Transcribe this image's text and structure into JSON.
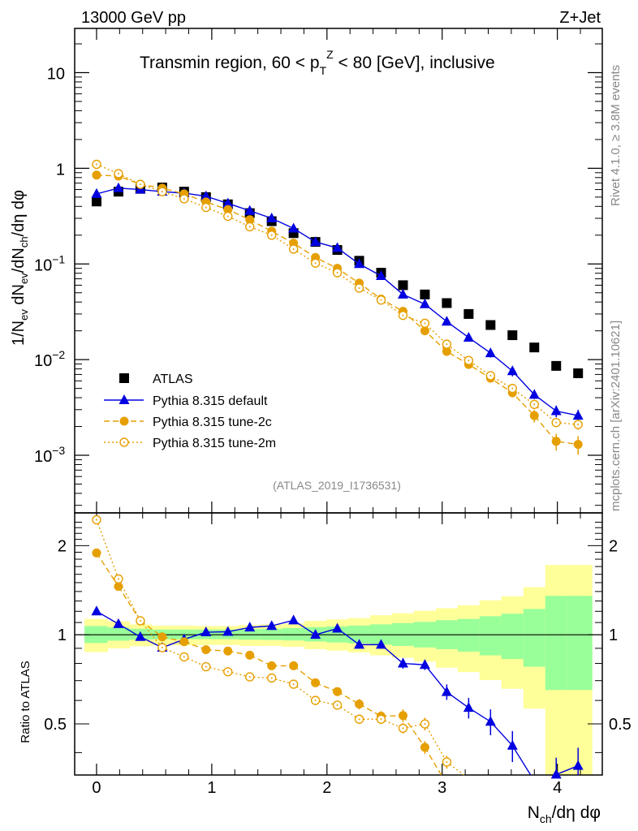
{
  "header": {
    "left": "13000 GeV pp",
    "right": "Z+Jet"
  },
  "side_labels": {
    "top": "Rivet 4.1.0, ≥ 3.8M events",
    "bottom": "mcplots.cern.ch [arXiv:2401.10621]"
  },
  "analysis_id": "(ATLAS_2019_I1736531)",
  "chart_data": {
    "type": "line",
    "title": "Transmin region, 60 < p_T^Z < 80 [GeV], inclusive",
    "title_parts": {
      "pre": "Transmin region, 60 < p",
      "sup": "Z",
      "sub": "T",
      "post": " < 80 [GeV], inclusive"
    },
    "xlabel": "N_ch/dη dφ",
    "xlabel_parts": {
      "main": "N",
      "sub": "ch",
      "post": "/dη dφ"
    },
    "ylabel": "1/N_ev dN_ev/dN_ch/dη dφ",
    "ylabel_parts": {
      "a": "1/N",
      "a_sub": "ev",
      "b": " dN",
      "b_sub": "ev",
      "c": "/dN",
      "c_sub": "ch",
      "d": "/dη dφ"
    },
    "ratio_ylabel": "Ratio to ATLAS",
    "xlim": [
      -0.19,
      4.39
    ],
    "ylim": [
      0.00025,
      29
    ],
    "yscale": "log",
    "ratio_ylim": [
      0.336,
      2.58
    ],
    "x_ticks": [
      "0",
      "1",
      "2",
      "3",
      "4"
    ],
    "y_ticks": [
      {
        "v": 0.001,
        "base": "10",
        "exp": "−3"
      },
      {
        "v": 0.01,
        "base": "10",
        "exp": "−2"
      },
      {
        "v": 0.1,
        "base": "10",
        "exp": "−1"
      },
      {
        "v": 1,
        "base": "1",
        "exp": ""
      },
      {
        "v": 10,
        "base": "10",
        "exp": ""
      }
    ],
    "ratio_ticks": [
      "0.5",
      "1",
      "2"
    ],
    "legend_position": "lower-left",
    "x": [
      0,
      0.19,
      0.38,
      0.57,
      0.76,
      0.95,
      1.14,
      1.33,
      1.52,
      1.71,
      1.9,
      2.09,
      2.28,
      2.47,
      2.66,
      2.85,
      3.04,
      3.23,
      3.42,
      3.61,
      3.8,
      3.99,
      4.18
    ],
    "series": [
      {
        "name": "ATLAS",
        "color": "#000000",
        "marker": "square",
        "values": [
          0.45,
          0.57,
          0.61,
          0.63,
          0.57,
          0.5,
          0.42,
          0.34,
          0.28,
          0.21,
          0.17,
          0.14,
          0.108,
          0.081,
          0.06,
          0.048,
          0.039,
          0.03,
          0.023,
          0.018,
          0.0134,
          0.0086,
          0.0072
        ]
      },
      {
        "name": "Pythia 8.315 default",
        "color": "#0000e0",
        "marker": "triangle",
        "line": "solid",
        "values": [
          0.54,
          0.62,
          0.6,
          0.57,
          0.55,
          0.51,
          0.43,
          0.36,
          0.3,
          0.235,
          0.17,
          0.147,
          0.1,
          0.075,
          0.048,
          0.038,
          0.025,
          0.017,
          0.0117,
          0.0076,
          0.0043,
          0.0029,
          0.0026
        ],
        "rel_err": [
          0,
          0,
          0,
          0,
          0,
          0,
          0,
          0,
          0,
          0,
          0,
          0,
          0,
          0.03,
          0.04,
          0.04,
          0.06,
          0.08,
          0.1,
          0.12,
          0.1,
          0.14,
          0.15
        ]
      },
      {
        "name": "Pythia 8.315 tune-2c",
        "color": "#e69f00",
        "marker": "circle",
        "line": "dashed",
        "values": [
          0.85,
          0.83,
          0.68,
          0.62,
          0.54,
          0.445,
          0.37,
          0.29,
          0.22,
          0.165,
          0.117,
          0.09,
          0.063,
          0.043,
          0.032,
          0.02,
          0.0122,
          0.0089,
          0.0064,
          0.0045,
          0.0026,
          0.0014,
          0.0013
        ],
        "rel_err": [
          0,
          0,
          0,
          0,
          0,
          0,
          0,
          0,
          0,
          0,
          0,
          0.02,
          0.04,
          0.04,
          0.05,
          0.05,
          0.06,
          0.07,
          0.08,
          0.1,
          0.15,
          0.2,
          0.22
        ]
      },
      {
        "name": "Pythia 8.315 tune-2m",
        "color": "#e69f00",
        "marker": "open-circle",
        "line": "dotted",
        "values": [
          1.1,
          0.88,
          0.68,
          0.57,
          0.48,
          0.39,
          0.315,
          0.245,
          0.2,
          0.143,
          0.102,
          0.081,
          0.056,
          0.042,
          0.029,
          0.024,
          0.0145,
          0.0098,
          0.0068,
          0.005,
          0.0034,
          0.0022,
          0.0021
        ],
        "rel_err": [
          0,
          0,
          0,
          0,
          0,
          0,
          0,
          0,
          0,
          0,
          0,
          0,
          0,
          0,
          0.04,
          0.05,
          0.05,
          0.06,
          0.07,
          0.08,
          0.1,
          0.1,
          0.12
        ]
      }
    ],
    "ratio_bands": {
      "bin_edges": [
        -0.105,
        0.095,
        0.285,
        0.475,
        0.665,
        0.855,
        1.045,
        1.235,
        1.425,
        1.615,
        1.805,
        1.995,
        2.185,
        2.375,
        2.565,
        2.755,
        2.945,
        3.135,
        3.325,
        3.515,
        3.705,
        3.895,
        4.085,
        4.3
      ],
      "yellow_low": [
        0.874,
        0.899,
        0.915,
        0.921,
        0.921,
        0.924,
        0.924,
        0.917,
        0.917,
        0.91,
        0.894,
        0.884,
        0.872,
        0.852,
        0.836,
        0.812,
        0.774,
        0.748,
        0.703,
        0.657,
        0.563,
        0.3,
        0.3
      ],
      "yellow_high": [
        1.131,
        1.11,
        1.084,
        1.074,
        1.074,
        1.07,
        1.07,
        1.078,
        1.084,
        1.091,
        1.114,
        1.127,
        1.138,
        1.164,
        1.182,
        1.205,
        1.229,
        1.258,
        1.307,
        1.348,
        1.447,
        1.72,
        1.72
      ],
      "green_low": [
        0.938,
        0.955,
        0.962,
        0.966,
        0.966,
        0.966,
        0.966,
        0.962,
        0.96,
        0.957,
        0.949,
        0.942,
        0.935,
        0.926,
        0.917,
        0.906,
        0.894,
        0.877,
        0.852,
        0.828,
        0.78,
        0.651,
        0.651
      ],
      "green_high": [
        1.07,
        1.059,
        1.047,
        1.041,
        1.041,
        1.041,
        1.041,
        1.045,
        1.047,
        1.053,
        1.061,
        1.067,
        1.074,
        1.084,
        1.095,
        1.105,
        1.12,
        1.131,
        1.155,
        1.178,
        1.222,
        1.353,
        1.353
      ],
      "yellow_color": "#ffff99",
      "green_color": "#99ff99"
    }
  }
}
